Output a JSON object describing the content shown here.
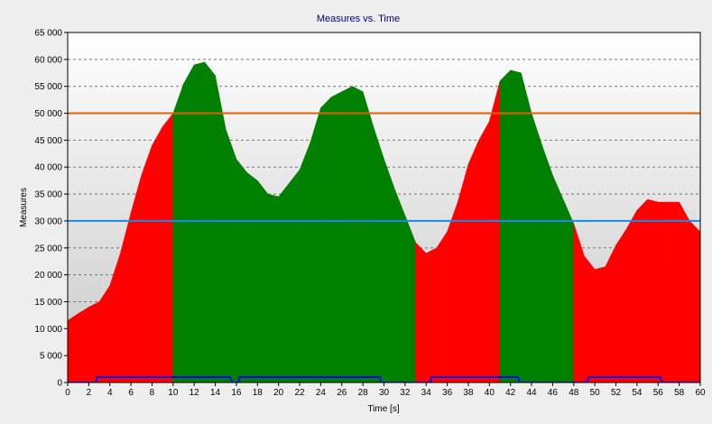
{
  "chart_data": {
    "type": "area",
    "title": "Measures vs. Time",
    "xlabel": "Time [s]",
    "ylabel": "Measures",
    "xlim": [
      0,
      60
    ],
    "ylim": [
      0,
      65000
    ],
    "x_ticks": [
      0,
      2,
      4,
      6,
      8,
      10,
      12,
      14,
      16,
      18,
      20,
      22,
      24,
      26,
      28,
      30,
      32,
      34,
      36,
      38,
      40,
      42,
      44,
      46,
      48,
      50,
      52,
      54,
      56,
      58,
      60
    ],
    "y_ticks": [
      0,
      5000,
      10000,
      15000,
      20000,
      25000,
      30000,
      35000,
      40000,
      45000,
      50000,
      55000,
      60000,
      65000
    ],
    "y_tick_labels": [
      "0",
      "5 000",
      "10 000",
      "15 000",
      "20 000",
      "25 000",
      "30 000",
      "35 000",
      "40 000",
      "45 000",
      "50 000",
      "55 000",
      "60 000",
      "65 000"
    ],
    "grid": true,
    "series": [
      {
        "role": "measure",
        "color_below": "#ff0000",
        "color_above": "#008000",
        "x": [
          0,
          1,
          2,
          3,
          4,
          5,
          6,
          7,
          8,
          9,
          10,
          11,
          12,
          13,
          14,
          15,
          16,
          17,
          18,
          19,
          20,
          21,
          22,
          23,
          24,
          25,
          26,
          27,
          28,
          29,
          30,
          31,
          32,
          33,
          34,
          35,
          36,
          37,
          38,
          39,
          40,
          41,
          42,
          43,
          44,
          45,
          46,
          47,
          48,
          49,
          50,
          51,
          52,
          53,
          54,
          55,
          56,
          57,
          58,
          59,
          60
        ],
        "y": [
          11500,
          12800,
          14000,
          15000,
          18000,
          24000,
          31500,
          38500,
          44000,
          47500,
          50000,
          55500,
          59000,
          59500,
          57000,
          47000,
          41500,
          39000,
          37500,
          35000,
          34500,
          37000,
          39500,
          44500,
          51000,
          53000,
          54000,
          55000,
          54000,
          47500,
          41500,
          36000,
          31000,
          26000,
          24000,
          25000,
          28000,
          33500,
          40500,
          45000,
          48500,
          56000,
          58000,
          57500,
          50000,
          44000,
          38500,
          34000,
          29500,
          23500,
          21000,
          21500,
          25500,
          28500,
          32000,
          34000,
          33500,
          33500,
          33500,
          30000,
          28000
        ]
      },
      {
        "role": "state",
        "color": "#0000ff",
        "x": [
          0,
          2.7,
          2.8,
          15.4,
          15.6,
          16.2,
          16.3,
          29.6,
          29.7,
          34.4,
          34.5,
          42.7,
          42.9,
          49.3,
          49.4,
          56.2,
          56.4,
          60
        ],
        "y": [
          0,
          0,
          1000,
          1000,
          0,
          0,
          1000,
          1000,
          0,
          0,
          1000,
          1000,
          0,
          0,
          1000,
          1000,
          0,
          0
        ]
      }
    ],
    "thresholds": [
      {
        "value": 50000,
        "color": "#e06000"
      },
      {
        "value": 30000,
        "color": "#1e88e5"
      }
    ]
  }
}
